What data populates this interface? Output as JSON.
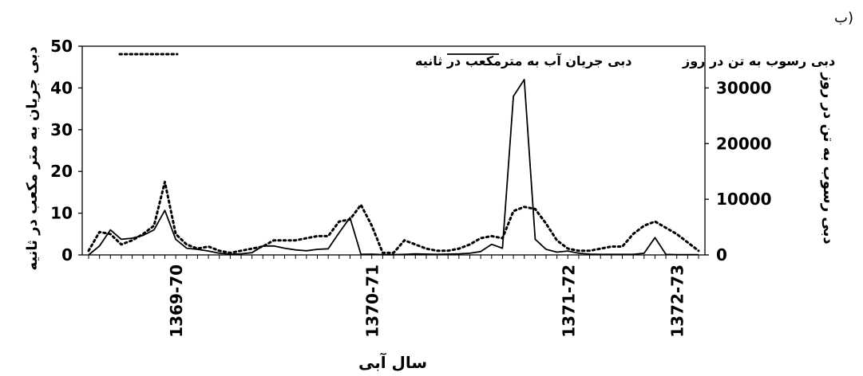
{
  "panel_label": "ب)",
  "chart_data": {
    "type": "line",
    "title": "",
    "xlabel": "سال آبی",
    "ylabel_left": "دبی جریان به متر مکعب در ثانیه",
    "ylabel_right": "دبی رسوب به تن در روز",
    "x_tick_labels": [
      "1369-70",
      "1370-71",
      "1371-72",
      "1372-73"
    ],
    "x_tick_positions": [
      8,
      26,
      44,
      54
    ],
    "ylim_left": [
      0,
      50
    ],
    "yticks_left": [
      0,
      10,
      20,
      30,
      40,
      50
    ],
    "ylim_right": [
      0,
      37500
    ],
    "yticks_right": [
      0,
      10000,
      20000,
      30000
    ],
    "legend_position": "top",
    "series": [
      {
        "name": "دبی جریان آب به مترمکعب در ثانیه",
        "axis": "left",
        "style": "dotted",
        "color": "#000000",
        "values": [
          1,
          5.5,
          5,
          2.5,
          3.5,
          5,
          7,
          17.5,
          5,
          2.5,
          1.5,
          2,
          1,
          0.5,
          1,
          1.5,
          2,
          3.5,
          3.5,
          3.5,
          4,
          4.5,
          4.5,
          8,
          8.5,
          12,
          7,
          0.5,
          0.5,
          3.5,
          2.5,
          1.5,
          1,
          1,
          1.5,
          2.5,
          4,
          4.5,
          4,
          10.5,
          11.5,
          11,
          7.5,
          3.5,
          1.5,
          1,
          1,
          1.5,
          2,
          2,
          5,
          7,
          8,
          6.5,
          5,
          3,
          1
        ]
      },
      {
        "name": "دبی رسوب به تن در روز",
        "axis": "right",
        "style": "solid",
        "color": "#000000",
        "values": [
          0,
          1600,
          4500,
          2800,
          3000,
          3500,
          4500,
          8000,
          2800,
          1200,
          1000,
          700,
          300,
          150,
          200,
          400,
          1600,
          1600,
          1200,
          900,
          750,
          1000,
          1100,
          4000,
          6700,
          100,
          150,
          50,
          50,
          100,
          200,
          150,
          100,
          150,
          200,
          300,
          600,
          1900,
          1200,
          28500,
          31500,
          2800,
          1000,
          500,
          700,
          300,
          150,
          100,
          100,
          100,
          100,
          300,
          3100,
          100,
          50,
          50,
          50
        ]
      }
    ],
    "colors": {
      "lines": "#000000",
      "background": "#ffffff",
      "axes": "#000000"
    }
  }
}
